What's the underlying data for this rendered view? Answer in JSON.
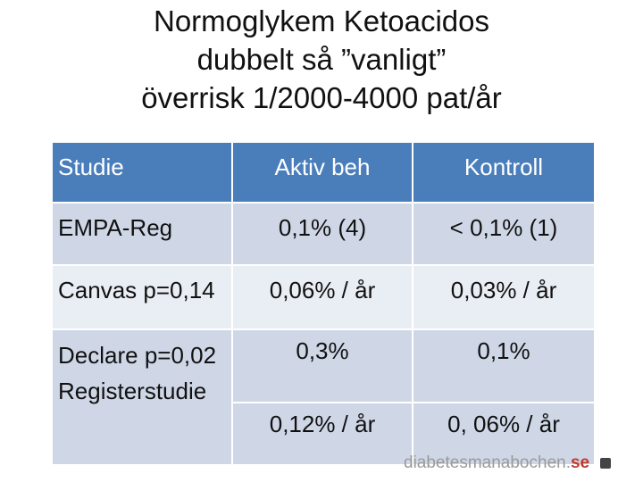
{
  "title": {
    "line1": "Normoglykem Ketoacidos",
    "line2": "dubbelt så ”vanligt”",
    "line3": "överrisk 1/2000-4000 pat/år"
  },
  "table": {
    "headers": [
      "Studie",
      "Aktiv beh",
      "Kontroll"
    ],
    "rows": [
      [
        "EMPA-Reg",
        "0,1% (4)",
        "< 0,1% (1)"
      ],
      [
        "Canvas p=0,14",
        "0,06% / år",
        "0,03% / år"
      ],
      [
        "Declare p=0,02 Registerstudie",
        "0,3%",
        "0,1%"
      ],
      [
        "",
        "0,12% / år",
        "0, 06% / år"
      ]
    ]
  },
  "watermark": {
    "text": "diabetesmanabochen.",
    "accent": "se"
  },
  "colors": {
    "header_bg": "#4a7ebb",
    "row_dark": "#cfd7e7",
    "row_light": "#e9edf4"
  }
}
